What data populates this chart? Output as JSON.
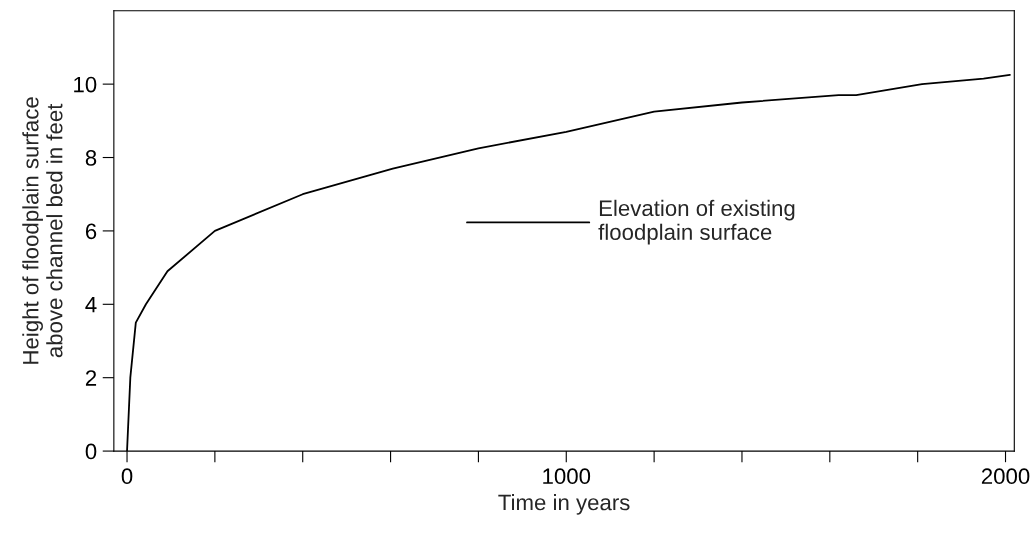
{
  "chart_data": {
    "type": "line",
    "xlabel": "Time in years",
    "ylabel": "Height of floodplain surface\nabove channel bed in feet",
    "x": [
      0,
      7.5,
      20,
      43,
      92,
      200,
      400,
      605,
      800,
      1000,
      1200,
      1400,
      1620,
      1660,
      1810,
      1950,
      2010
    ],
    "series": [
      {
        "name": "Elevation of existing\nfloodplain surface",
        "color": "#000000",
        "values": [
          0,
          2,
          3.5,
          4,
          4.9,
          6,
          7,
          7.7,
          8.25,
          8.7,
          9.25,
          9.5,
          9.7,
          9.7,
          10,
          10.15,
          10.25
        ]
      }
    ],
    "xlim": [
      -30,
      2020
    ],
    "ylim": [
      0,
      12
    ],
    "xticks": [
      0,
      {
        "value": 200,
        "label": null
      },
      {
        "value": 400,
        "label": null
      },
      {
        "value": 600,
        "label": null
      },
      {
        "value": 800,
        "label": null
      },
      1000,
      {
        "value": 1200,
        "label": null
      },
      {
        "value": 1400,
        "label": null
      },
      {
        "value": 1600,
        "label": null
      },
      {
        "value": 1800,
        "label": null
      },
      2000
    ],
    "yticks": [
      0,
      2,
      4,
      6,
      8,
      10
    ],
    "grid": false,
    "legend": "right",
    "marker": "none",
    "line_style": "solid"
  }
}
